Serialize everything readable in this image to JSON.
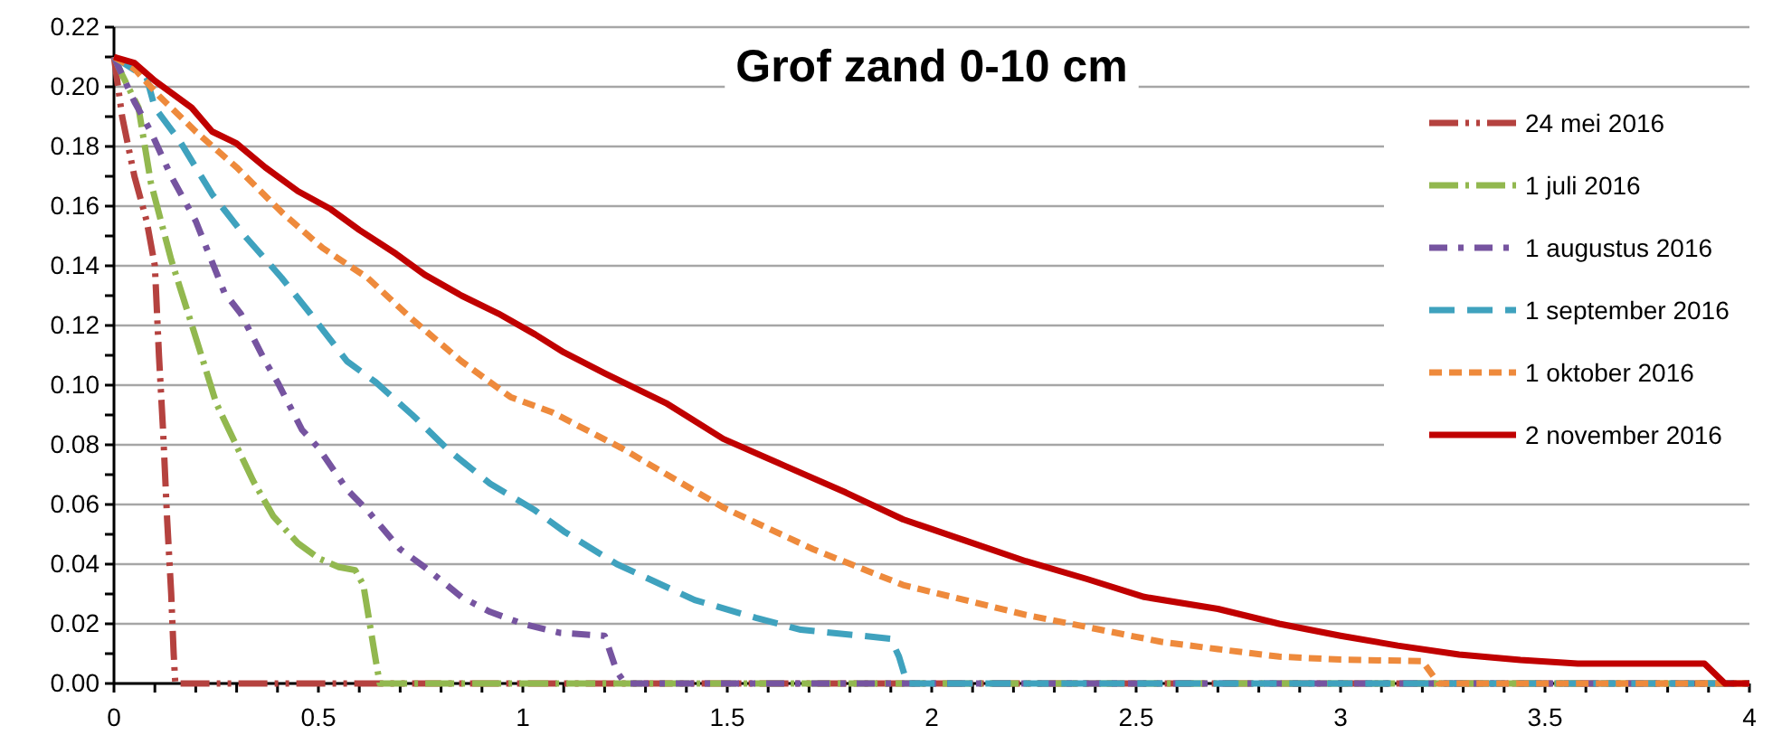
{
  "chart_data": {
    "type": "line",
    "title": "Grof zand 0-10 cm",
    "grid": "y",
    "legend": "top right",
    "marker": "none",
    "xlim": [
      0,
      4
    ],
    "xticks": [
      0,
      {
        "value": 0.1,
        "label": null
      },
      {
        "value": 0.2,
        "label": null
      },
      {
        "value": 0.3,
        "label": null
      },
      {
        "value": 0.4,
        "label": null
      },
      0.5,
      {
        "value": 0.6,
        "label": null
      },
      {
        "value": 0.7,
        "label": null
      },
      {
        "value": 0.8,
        "label": null
      },
      {
        "value": 0.9,
        "label": null
      },
      1,
      {
        "value": 1.1,
        "label": null
      },
      {
        "value": 1.2,
        "label": null
      },
      {
        "value": 1.3,
        "label": null
      },
      {
        "value": 1.4,
        "label": null
      },
      1.5,
      {
        "value": 1.6,
        "label": null
      },
      {
        "value": 1.7,
        "label": null
      },
      {
        "value": 1.8,
        "label": null
      },
      {
        "value": 1.9,
        "label": null
      },
      2,
      {
        "value": 2.1,
        "label": null
      },
      {
        "value": 2.2,
        "label": null
      },
      {
        "value": 2.3,
        "label": null
      },
      {
        "value": 2.4,
        "label": null
      },
      2.5,
      {
        "value": 2.6,
        "label": null
      },
      {
        "value": 2.7,
        "label": null
      },
      {
        "value": 2.8,
        "label": null
      },
      {
        "value": 2.9,
        "label": null
      },
      3,
      {
        "value": 3.1,
        "label": null
      },
      {
        "value": 3.2,
        "label": null
      },
      {
        "value": 3.3,
        "label": null
      },
      {
        "value": 3.4,
        "label": null
      },
      3.5,
      {
        "value": 3.6,
        "label": null
      },
      {
        "value": 3.7,
        "label": null
      },
      {
        "value": 3.8,
        "label": null
      },
      {
        "value": 3.9,
        "label": null
      },
      4
    ],
    "ylim": [
      0,
      0.22
    ],
    "yticks": [
      {
        "value": 0,
        "label": "0.00"
      },
      {
        "value": 0.01,
        "label": null
      },
      {
        "value": 0.02,
        "label": "0.02"
      },
      {
        "value": 0.03,
        "label": null
      },
      {
        "value": 0.04,
        "label": "0.04"
      },
      {
        "value": 0.05,
        "label": null
      },
      {
        "value": 0.06,
        "label": "0.06"
      },
      {
        "value": 0.07,
        "label": null
      },
      {
        "value": 0.08,
        "label": "0.08"
      },
      {
        "value": 0.09,
        "label": null
      },
      {
        "value": 0.1,
        "label": "0.10"
      },
      {
        "value": 0.11,
        "label": null
      },
      {
        "value": 0.12,
        "label": "0.12"
      },
      {
        "value": 0.13,
        "label": null
      },
      {
        "value": 0.14,
        "label": "0.14"
      },
      {
        "value": 0.15,
        "label": null
      },
      {
        "value": 0.16,
        "label": "0.16"
      },
      {
        "value": 0.17,
        "label": null
      },
      {
        "value": 0.18,
        "label": "0.18"
      },
      {
        "value": 0.19,
        "label": null
      },
      {
        "value": 0.2,
        "label": "0.20"
      },
      {
        "value": 0.21,
        "label": null
      },
      {
        "value": 0.22,
        "label": "0.22"
      }
    ],
    "series": [
      {
        "name": "24 mei 2016",
        "color": "#b5423f",
        "line_style": "dashed",
        "x": [
          0,
          0.02,
          0.05,
          0.08,
          0.1,
          0.11,
          0.12,
          0.13,
          0.14,
          0.146,
          0.15,
          4
        ],
        "values": [
          0.21,
          0.19,
          0.17,
          0.155,
          0.14,
          0.11,
          0.085,
          0.055,
          0.03,
          0.01,
          0,
          0
        ]
      },
      {
        "name": "1 juli 2016",
        "color": "#92b84f",
        "line_style": "dashed",
        "x": [
          0,
          0.02,
          0.06,
          0.09,
          0.14,
          0.2,
          0.25,
          0.34,
          0.39,
          0.45,
          0.5,
          0.55,
          0.59,
          0.61,
          0.64,
          0.65,
          4
        ],
        "values": [
          0.21,
          0.204,
          0.193,
          0.168,
          0.142,
          0.116,
          0.094,
          0.068,
          0.056,
          0.047,
          0.042,
          0.039,
          0.038,
          0.033,
          0.008,
          0,
          0
        ]
      },
      {
        "name": "1 augustus 2016",
        "color": "#7654a0",
        "line_style": "dashed",
        "x": [
          0,
          0.05,
          0.09,
          0.14,
          0.2,
          0.27,
          0.31,
          0.37,
          0.4,
          0.46,
          0.5,
          0.57,
          0.62,
          0.7,
          0.76,
          0.85,
          0.92,
          1,
          1.09,
          1.2,
          1.23,
          1.25,
          4
        ],
        "values": [
          0.21,
          0.195,
          0.185,
          0.17,
          0.155,
          0.131,
          0.124,
          0.108,
          0.101,
          0.085,
          0.079,
          0.065,
          0.058,
          0.045,
          0.039,
          0.029,
          0.024,
          0.02,
          0.017,
          0.016,
          0.004,
          0,
          0
        ]
      },
      {
        "name": "1 september 2016",
        "color": "#3fa2be",
        "line_style": "dashed",
        "x": [
          0,
          0.08,
          0.1,
          0.16,
          0.24,
          0.32,
          0.41,
          0.48,
          0.57,
          0.64,
          0.73,
          0.82,
          0.92,
          1.03,
          1.1,
          1.23,
          1.42,
          1.57,
          1.68,
          1.83,
          1.9,
          1.92,
          1.94,
          4
        ],
        "values": [
          0.21,
          0.203,
          0.193,
          0.182,
          0.164,
          0.15,
          0.136,
          0.124,
          0.108,
          0.101,
          0.09,
          0.078,
          0.067,
          0.058,
          0.051,
          0.04,
          0.028,
          0.022,
          0.018,
          0.016,
          0.015,
          0.009,
          0,
          0
        ]
      },
      {
        "name": "1 oktober 2016",
        "color": "#ee8a3c",
        "line_style": "dashed",
        "x": [
          0,
          0.05,
          0.11,
          0.2,
          0.3,
          0.41,
          0.51,
          0.62,
          0.73,
          0.85,
          0.97,
          1.07,
          1.24,
          1.49,
          1.71,
          1.93,
          2.23,
          2.56,
          2.7,
          2.85,
          3,
          3.2,
          3.24,
          4
        ],
        "values": [
          0.21,
          0.206,
          0.197,
          0.185,
          0.173,
          0.158,
          0.146,
          0.136,
          0.122,
          0.108,
          0.096,
          0.091,
          0.079,
          0.059,
          0.045,
          0.033,
          0.023,
          0.014,
          0.0115,
          0.009,
          0.008,
          0.0075,
          0,
          0
        ]
      },
      {
        "name": "2 november 2016",
        "color": "#c00000",
        "line_style": "solid",
        "x": [
          0,
          0.05,
          0.1,
          0.19,
          0.24,
          0.3,
          0.37,
          0.45,
          0.53,
          0.6,
          0.69,
          0.76,
          0.85,
          0.94,
          1.03,
          1.1,
          1.2,
          1.35,
          1.49,
          1.64,
          1.79,
          1.93,
          2.08,
          2.23,
          2.38,
          2.52,
          2.7,
          2.85,
          3,
          3.14,
          3.29,
          3.44,
          3.58,
          3.73,
          3.89,
          3.94,
          4
        ],
        "values": [
          0.21,
          0.208,
          0.202,
          0.193,
          0.185,
          0.181,
          0.173,
          0.165,
          0.159,
          0.152,
          0.144,
          0.137,
          0.13,
          0.124,
          0.117,
          0.111,
          0.104,
          0.094,
          0.082,
          0.073,
          0.064,
          0.055,
          0.048,
          0.041,
          0.035,
          0.029,
          0.025,
          0.02,
          0.016,
          0.0127,
          0.0097,
          0.0079,
          0.0067,
          0.0067,
          0.0067,
          0,
          0
        ]
      }
    ]
  }
}
